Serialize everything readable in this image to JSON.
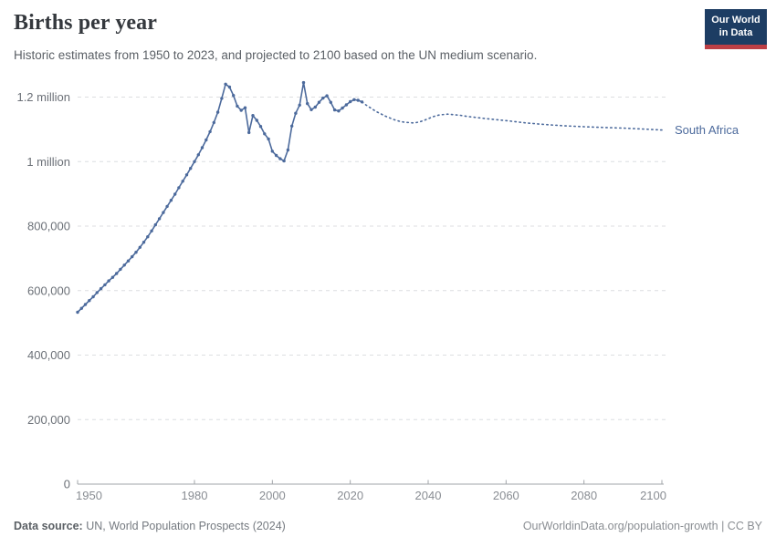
{
  "header": {
    "title": "Births per year",
    "subtitle": "Historic estimates from 1950 to 2023, and projected to 2100 based on the UN medium scenario.",
    "logo": {
      "line1": "Our World",
      "line2": "in Data"
    }
  },
  "footer": {
    "source_label": "Data source:",
    "source_text": " UN, World Population Prospects (2024)",
    "link_text": "OurWorldinData.org/population-growth | CC BY"
  },
  "colors": {
    "line": "#4c6a9c",
    "entity_label": "#4c6a9c",
    "grid": "#dcdee1",
    "axis": "#a1a4a9",
    "x_tick_label": "#898d93",
    "y_tick_label": "#6b7077",
    "logo_bg": "#1d3d63",
    "logo_red": "#bc3f45"
  },
  "chart_data": {
    "type": "line",
    "title": "Births per year",
    "entity_label": "South Africa",
    "xlabel": "",
    "ylabel": "",
    "xlim": [
      1950,
      2100
    ],
    "ylim": [
      0,
      1200000
    ],
    "grid": "horizontal-dashed",
    "legend_position": "line-end",
    "x_ticks": [
      1950,
      1980,
      2000,
      2020,
      2040,
      2060,
      2080,
      2100
    ],
    "y_ticks": [
      {
        "value": 0,
        "label": "0"
      },
      {
        "value": 200000,
        "label": "200,000"
      },
      {
        "value": 400000,
        "label": "400,000"
      },
      {
        "value": 600000,
        "label": "600,000"
      },
      {
        "value": 800000,
        "label": "800,000"
      },
      {
        "value": 1000000,
        "label": "1 million"
      },
      {
        "value": 1200000,
        "label": "1.2 million"
      }
    ],
    "series": [
      {
        "name": "South Africa (historic estimates)",
        "style": "solid",
        "markers": true,
        "points": [
          [
            1950,
            533000
          ],
          [
            1951,
            545000
          ],
          [
            1952,
            557000
          ],
          [
            1953,
            569000
          ],
          [
            1954,
            581000
          ],
          [
            1955,
            594000
          ],
          [
            1956,
            606000
          ],
          [
            1957,
            618000
          ],
          [
            1958,
            630000
          ],
          [
            1959,
            641000
          ],
          [
            1960,
            653000
          ],
          [
            1961,
            666000
          ],
          [
            1962,
            679000
          ],
          [
            1963,
            692000
          ],
          [
            1964,
            705000
          ],
          [
            1965,
            719000
          ],
          [
            1966,
            734000
          ],
          [
            1967,
            750000
          ],
          [
            1968,
            767000
          ],
          [
            1969,
            785000
          ],
          [
            1970,
            804000
          ],
          [
            1971,
            823000
          ],
          [
            1972,
            842000
          ],
          [
            1973,
            861000
          ],
          [
            1974,
            880000
          ],
          [
            1975,
            899000
          ],
          [
            1976,
            919000
          ],
          [
            1977,
            939000
          ],
          [
            1978,
            959000
          ],
          [
            1979,
            979000
          ],
          [
            1980,
            1000000
          ],
          [
            1981,
            1021000
          ],
          [
            1982,
            1043000
          ],
          [
            1983,
            1067000
          ],
          [
            1984,
            1093000
          ],
          [
            1985,
            1121000
          ],
          [
            1986,
            1153000
          ],
          [
            1987,
            1196000
          ],
          [
            1988,
            1240000
          ],
          [
            1989,
            1231000
          ],
          [
            1990,
            1205000
          ],
          [
            1991,
            1172000
          ],
          [
            1992,
            1159000
          ],
          [
            1993,
            1167000
          ],
          [
            1994,
            1090000
          ],
          [
            1995,
            1143000
          ],
          [
            1996,
            1128000
          ],
          [
            1997,
            1109000
          ],
          [
            1998,
            1086000
          ],
          [
            1999,
            1070000
          ],
          [
            2000,
            1032000
          ],
          [
            2001,
            1019000
          ],
          [
            2002,
            1009000
          ],
          [
            2003,
            1002000
          ],
          [
            2004,
            1036000
          ],
          [
            2005,
            1110000
          ],
          [
            2006,
            1150000
          ],
          [
            2007,
            1175000
          ],
          [
            2008,
            1245000
          ],
          [
            2009,
            1180000
          ],
          [
            2010,
            1161000
          ],
          [
            2011,
            1169000
          ],
          [
            2012,
            1184000
          ],
          [
            2013,
            1197000
          ],
          [
            2014,
            1204000
          ],
          [
            2015,
            1184000
          ],
          [
            2016,
            1160000
          ],
          [
            2017,
            1157000
          ],
          [
            2018,
            1166000
          ],
          [
            2019,
            1176000
          ],
          [
            2020,
            1186000
          ],
          [
            2021,
            1192000
          ],
          [
            2022,
            1190000
          ],
          [
            2023,
            1185000
          ]
        ]
      },
      {
        "name": "South Africa (UN medium projection)",
        "style": "dotted",
        "markers": false,
        "points": [
          [
            2023,
            1185000
          ],
          [
            2024,
            1176000
          ],
          [
            2025,
            1168000
          ],
          [
            2026,
            1160000
          ],
          [
            2027,
            1153000
          ],
          [
            2028,
            1147000
          ],
          [
            2029,
            1141000
          ],
          [
            2030,
            1136000
          ],
          [
            2031,
            1131000
          ],
          [
            2032,
            1127000
          ],
          [
            2033,
            1124000
          ],
          [
            2034,
            1122000
          ],
          [
            2035,
            1121000
          ],
          [
            2036,
            1120000
          ],
          [
            2037,
            1121000
          ],
          [
            2038,
            1124000
          ],
          [
            2039,
            1128000
          ],
          [
            2040,
            1133000
          ],
          [
            2041,
            1138000
          ],
          [
            2042,
            1142000
          ],
          [
            2043,
            1145000
          ],
          [
            2044,
            1146000
          ],
          [
            2045,
            1147000
          ],
          [
            2046,
            1146000
          ],
          [
            2047,
            1145000
          ],
          [
            2048,
            1144000
          ],
          [
            2049,
            1142000
          ],
          [
            2050,
            1140000
          ],
          [
            2055,
            1133000
          ],
          [
            2060,
            1127000
          ],
          [
            2065,
            1120000
          ],
          [
            2070,
            1115000
          ],
          [
            2075,
            1111000
          ],
          [
            2080,
            1108000
          ],
          [
            2085,
            1106000
          ],
          [
            2090,
            1104000
          ],
          [
            2095,
            1101000
          ],
          [
            2100,
            1098000
          ]
        ]
      }
    ]
  }
}
